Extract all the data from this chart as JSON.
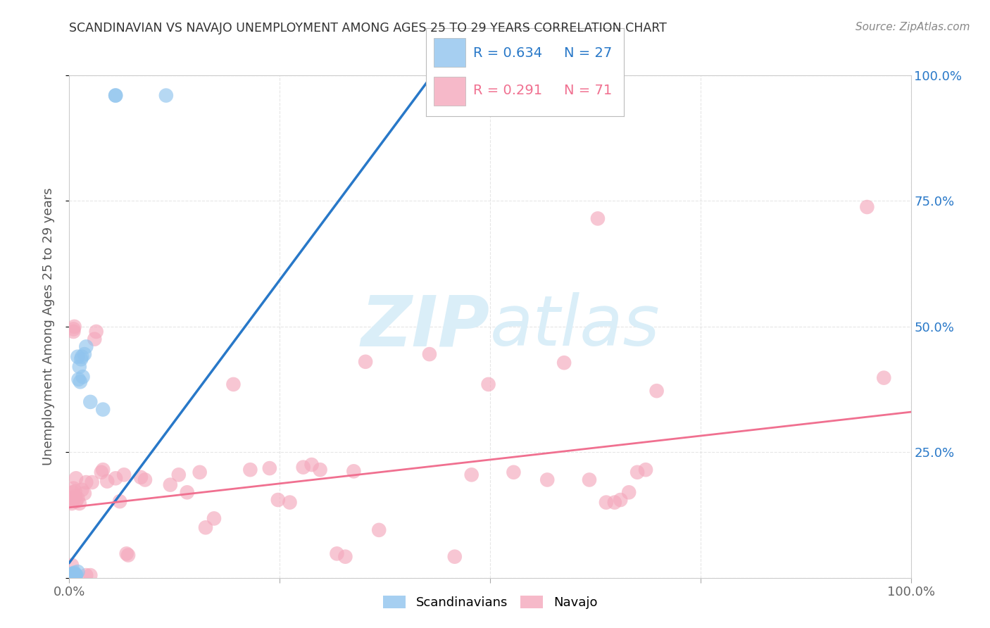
{
  "title": "SCANDINAVIAN VS NAVAJO UNEMPLOYMENT AMONG AGES 25 TO 29 YEARS CORRELATION CHART",
  "source": "Source: ZipAtlas.com",
  "ylabel": "Unemployment Among Ages 25 to 29 years",
  "xlim": [
    0,
    1.0
  ],
  "ylim": [
    0,
    1.0
  ],
  "xticks": [
    0.0,
    0.25,
    0.5,
    0.75,
    1.0
  ],
  "xticklabels": [
    "0.0%",
    "",
    "",
    "",
    "100.0%"
  ],
  "yticks": [
    0.0,
    0.25,
    0.5,
    0.75,
    1.0
  ],
  "yticklabels_right": [
    "",
    "25.0%",
    "50.0%",
    "75.0%",
    "100.0%"
  ],
  "background_color": "#ffffff",
  "grid_color": "#e0e0e0",
  "scandinavian_color": "#90c4ee",
  "navajo_color": "#f4a8bc",
  "trend_scandinavian_color": "#2878c8",
  "trend_navajo_color": "#f07090",
  "watermark_zip": "ZIP",
  "watermark_atlas": "atlas",
  "watermark_color": "#daeef8",
  "legend_r_sc": "R = 0.634",
  "legend_n_sc": "N = 27",
  "legend_r_nv": "R = 0.291",
  "legend_n_nv": "N = 71",
  "sc_trend_x": [
    0.0,
    0.44
  ],
  "sc_trend_y": [
    0.03,
    1.02
  ],
  "nv_trend_x": [
    0.0,
    1.0
  ],
  "nv_trend_y": [
    0.14,
    0.33
  ],
  "scandinavian_points": [
    [
      0.002,
      0.005
    ],
    [
      0.003,
      0.003
    ],
    [
      0.003,
      0.007
    ],
    [
      0.004,
      0.005
    ],
    [
      0.004,
      0.008
    ],
    [
      0.005,
      0.003
    ],
    [
      0.005,
      0.008
    ],
    [
      0.006,
      0.01
    ],
    [
      0.007,
      0.005
    ],
    [
      0.007,
      0.005
    ],
    [
      0.008,
      0.006
    ],
    [
      0.008,
      0.005
    ],
    [
      0.01,
      0.012
    ],
    [
      0.01,
      0.44
    ],
    [
      0.011,
      0.395
    ],
    [
      0.012,
      0.42
    ],
    [
      0.013,
      0.39
    ],
    [
      0.014,
      0.435
    ],
    [
      0.015,
      0.44
    ],
    [
      0.016,
      0.4
    ],
    [
      0.018,
      0.445
    ],
    [
      0.02,
      0.46
    ],
    [
      0.025,
      0.35
    ],
    [
      0.04,
      0.335
    ],
    [
      0.055,
      0.96
    ],
    [
      0.055,
      0.96
    ],
    [
      0.115,
      0.96
    ]
  ],
  "navajo_points": [
    [
      0.002,
      0.155
    ],
    [
      0.003,
      0.148
    ],
    [
      0.003,
      0.025
    ],
    [
      0.004,
      0.155
    ],
    [
      0.004,
      0.17
    ],
    [
      0.005,
      0.178
    ],
    [
      0.005,
      0.49
    ],
    [
      0.005,
      0.495
    ],
    [
      0.006,
      0.5
    ],
    [
      0.006,
      0.158
    ],
    [
      0.007,
      0.162
    ],
    [
      0.007,
      0.172
    ],
    [
      0.008,
      0.198
    ],
    [
      0.008,
      0.152
    ],
    [
      0.01,
      0.158
    ],
    [
      0.012,
      0.148
    ],
    [
      0.015,
      0.175
    ],
    [
      0.018,
      0.168
    ],
    [
      0.02,
      0.005
    ],
    [
      0.02,
      0.19
    ],
    [
      0.025,
      0.005
    ],
    [
      0.027,
      0.19
    ],
    [
      0.03,
      0.475
    ],
    [
      0.032,
      0.49
    ],
    [
      0.038,
      0.21
    ],
    [
      0.04,
      0.215
    ],
    [
      0.045,
      0.192
    ],
    [
      0.055,
      0.198
    ],
    [
      0.06,
      0.152
    ],
    [
      0.065,
      0.205
    ],
    [
      0.068,
      0.048
    ],
    [
      0.07,
      0.045
    ],
    [
      0.085,
      0.2
    ],
    [
      0.09,
      0.195
    ],
    [
      0.12,
      0.185
    ],
    [
      0.13,
      0.205
    ],
    [
      0.14,
      0.17
    ],
    [
      0.155,
      0.21
    ],
    [
      0.162,
      0.1
    ],
    [
      0.172,
      0.118
    ],
    [
      0.195,
      0.385
    ],
    [
      0.215,
      0.215
    ],
    [
      0.238,
      0.218
    ],
    [
      0.248,
      0.155
    ],
    [
      0.262,
      0.15
    ],
    [
      0.278,
      0.22
    ],
    [
      0.288,
      0.225
    ],
    [
      0.298,
      0.215
    ],
    [
      0.318,
      0.048
    ],
    [
      0.328,
      0.042
    ],
    [
      0.338,
      0.212
    ],
    [
      0.352,
      0.43
    ],
    [
      0.368,
      0.095
    ],
    [
      0.428,
      0.445
    ],
    [
      0.458,
      0.042
    ],
    [
      0.478,
      0.205
    ],
    [
      0.498,
      0.385
    ],
    [
      0.528,
      0.21
    ],
    [
      0.568,
      0.195
    ],
    [
      0.588,
      0.428
    ],
    [
      0.618,
      0.195
    ],
    [
      0.628,
      0.715
    ],
    [
      0.638,
      0.15
    ],
    [
      0.648,
      0.15
    ],
    [
      0.655,
      0.155
    ],
    [
      0.665,
      0.17
    ],
    [
      0.675,
      0.21
    ],
    [
      0.685,
      0.215
    ],
    [
      0.698,
      0.372
    ],
    [
      0.948,
      0.738
    ],
    [
      0.968,
      0.398
    ]
  ]
}
